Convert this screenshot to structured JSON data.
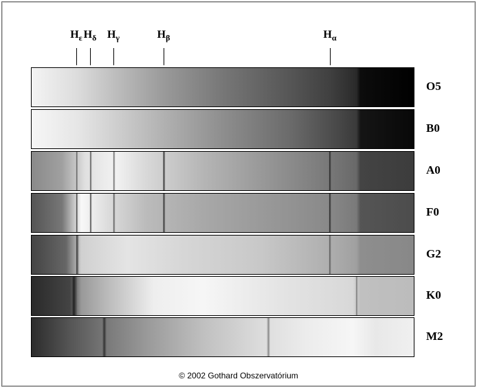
{
  "lines": [
    {
      "symbol": "H",
      "subscript": "ε"
    },
    {
      "symbol": "H",
      "subscript": "δ"
    },
    {
      "symbol": "H",
      "subscript": "γ"
    },
    {
      "symbol": "H",
      "subscript": "β"
    },
    {
      "symbol": "H",
      "subscript": "α"
    }
  ],
  "spectra": [
    "O5",
    "B0",
    "A0",
    "F0",
    "G2",
    "K0",
    "M2"
  ],
  "footer": "© 2002 Gothard Obszervatórium"
}
